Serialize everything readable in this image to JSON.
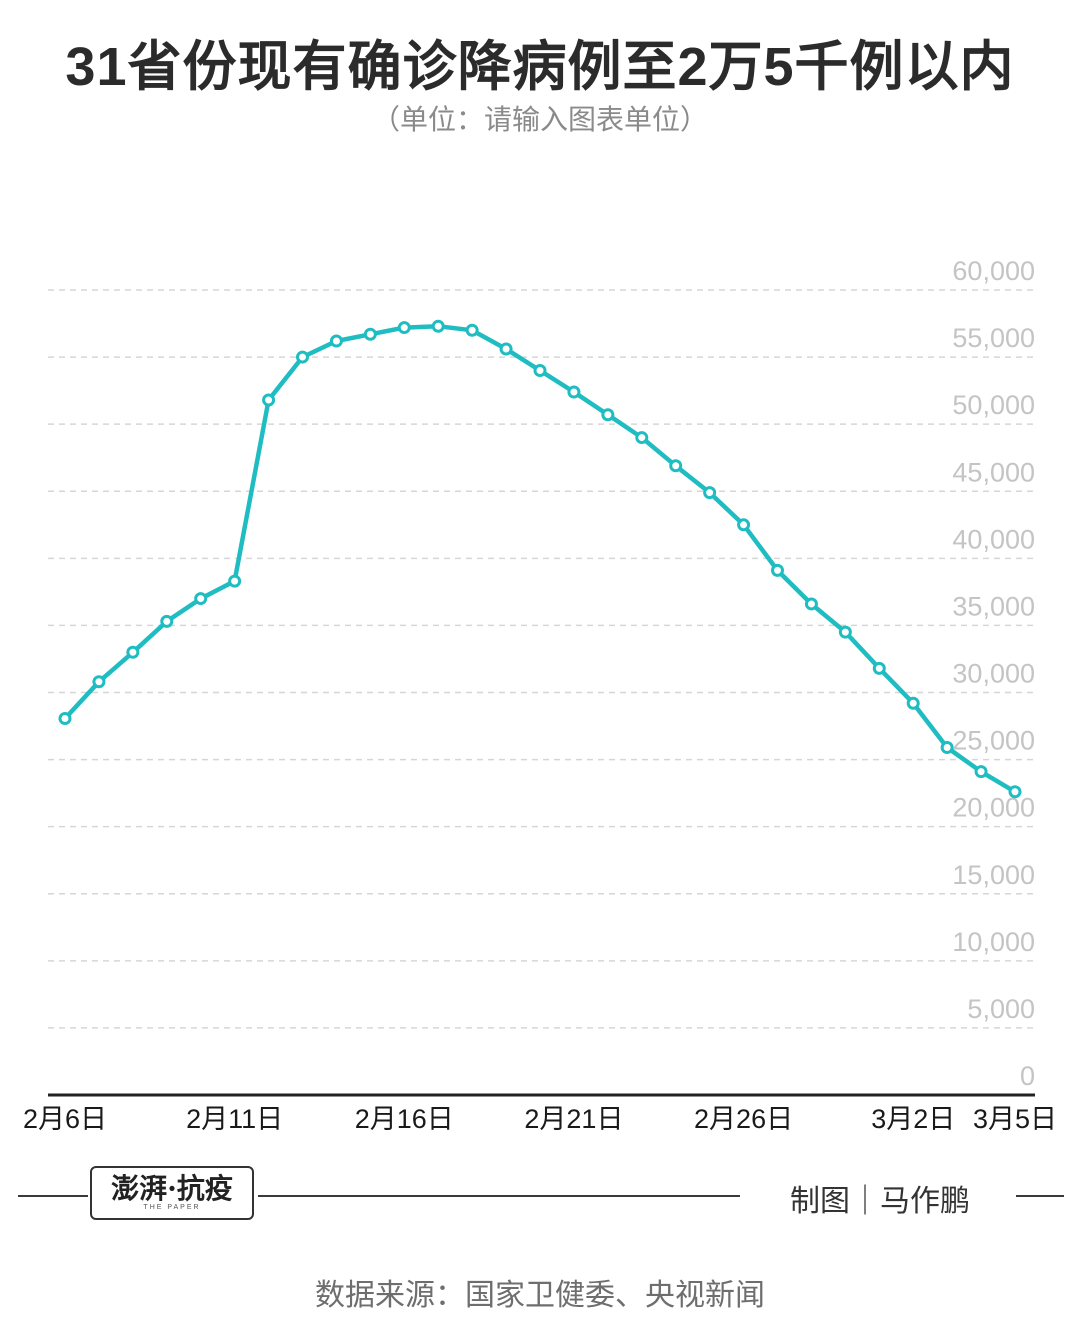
{
  "header": {
    "title": "31省份现有确诊降病例至2万5千例以内",
    "subtitle": "（单位：请输入图表单位）"
  },
  "footer": {
    "logo_text": "澎湃·抗疫",
    "logo_sub": "THE PAPER",
    "credit": "制图｜马作鹏",
    "source": "数据来源：国家卫健委、央视新闻"
  },
  "colors": {
    "line": "#1fbdc2",
    "grid": "#d6d6d6",
    "axis": "#222222",
    "tick": "#c4c4c4"
  },
  "chart_data": {
    "type": "line",
    "title": "31省份现有确诊降病例至2万5千例以内",
    "xlabel": "",
    "ylabel": "",
    "ylim": [
      0,
      60000
    ],
    "yticks": [
      "0",
      "5,000",
      "10,000",
      "15,000",
      "20,000",
      "25,000",
      "30,000",
      "35,000",
      "40,000",
      "45,000",
      "50,000",
      "55,000",
      "60,000"
    ],
    "xtick_labels": [
      {
        "index": 0,
        "label": "2月6日"
      },
      {
        "index": 5,
        "label": "2月11日"
      },
      {
        "index": 10,
        "label": "2月16日"
      },
      {
        "index": 15,
        "label": "2月21日"
      },
      {
        "index": 20,
        "label": "2月26日"
      },
      {
        "index": 25,
        "label": "3月2日"
      },
      {
        "index": 28,
        "label": "3月5日"
      }
    ],
    "grid": true,
    "x": [
      "2月6日",
      "2月7日",
      "2月8日",
      "2月9日",
      "2月10日",
      "2月11日",
      "2月12日",
      "2月13日",
      "2月14日",
      "2月15日",
      "2月16日",
      "2月17日",
      "2月18日",
      "2月19日",
      "2月20日",
      "2月21日",
      "2月22日",
      "2月23日",
      "2月24日",
      "2月25日",
      "2月26日",
      "2月27日",
      "2月28日",
      "2月29日",
      "3月1日",
      "3月2日",
      "3月3日",
      "3月4日",
      "3月5日"
    ],
    "series": [
      {
        "values": [
          28060,
          30800,
          33000,
          35300,
          37000,
          38300,
          51800,
          55000,
          56200,
          56700,
          57200,
          57300,
          57000,
          55600,
          54000,
          52400,
          50700,
          49000,
          46900,
          44900,
          42500,
          39100,
          36600,
          34500,
          31800,
          29200,
          25900,
          24100,
          22600
        ]
      }
    ]
  }
}
